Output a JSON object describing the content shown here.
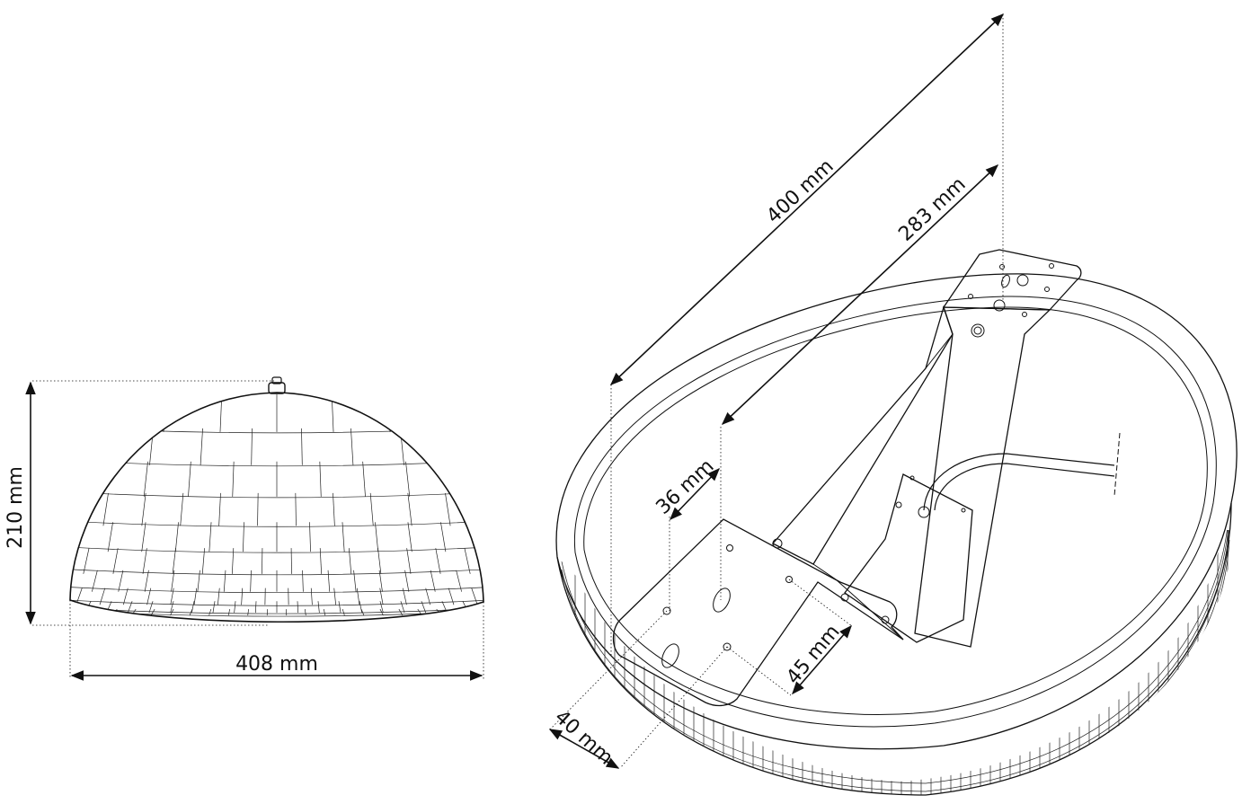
{
  "front_view": {
    "height_label": "210 mm",
    "width_label": "408 mm"
  },
  "mount_view": {
    "length_label": "400 mm",
    "hole_spacing_label": "283 mm",
    "offset_36_label": "36 mm",
    "offset_45_label": "45 mm",
    "offset_40_label": "40 mm"
  },
  "colors": {
    "line": "#111111",
    "background": "#ffffff"
  }
}
